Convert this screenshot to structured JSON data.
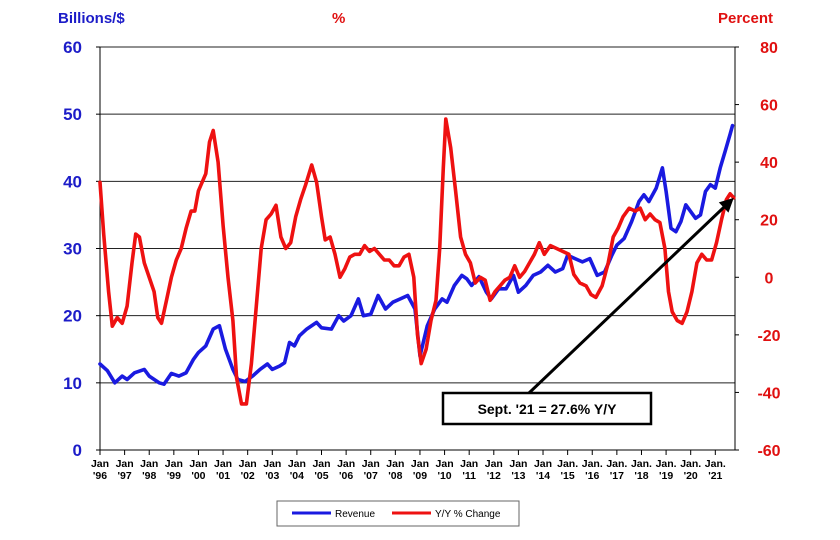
{
  "titles": {
    "left_axis": "Billions/$",
    "middle": "%",
    "right_axis": "Percent"
  },
  "colors": {
    "revenue": "#1a1ae0",
    "yoy": "#ee1111",
    "left_axis_text": "#1c1cc8",
    "right_axis_text": "#e01010"
  },
  "chart_data": {
    "type": "line",
    "left_axis": {
      "ylim": [
        0,
        60
      ],
      "ticks": [
        0,
        10,
        20,
        30,
        40,
        50,
        60
      ]
    },
    "right_axis": {
      "ylim": [
        -60,
        80
      ],
      "ticks": [
        -60,
        -40,
        -20,
        0,
        20,
        40,
        60,
        80
      ]
    },
    "x_range": [
      1996,
      2021.8
    ],
    "x_ticks": [
      {
        "x": 1996,
        "line1": "Jan",
        "line2": "'96"
      },
      {
        "x": 1997,
        "line1": "Jan",
        "line2": "'97"
      },
      {
        "x": 1998,
        "line1": "Jan",
        "line2": "'98"
      },
      {
        "x": 1999,
        "line1": "Jan",
        "line2": "'99"
      },
      {
        "x": 2000,
        "line1": "Jan",
        "line2": "'00"
      },
      {
        "x": 2001,
        "line1": "Jan",
        "line2": "'01"
      },
      {
        "x": 2002,
        "line1": "Jan",
        "line2": "'02"
      },
      {
        "x": 2003,
        "line1": "Jan",
        "line2": "'03"
      },
      {
        "x": 2004,
        "line1": "Jan",
        "line2": "'04"
      },
      {
        "x": 2005,
        "line1": "Jan",
        "line2": "'05"
      },
      {
        "x": 2006,
        "line1": "Jan",
        "line2": "'06"
      },
      {
        "x": 2007,
        "line1": "Jan",
        "line2": "'07"
      },
      {
        "x": 2008,
        "line1": "Jan",
        "line2": "'08"
      },
      {
        "x": 2009,
        "line1": "Jan",
        "line2": "'09"
      },
      {
        "x": 2010,
        "line1": "Jan",
        "line2": "'10"
      },
      {
        "x": 2011,
        "line1": "Jan",
        "line2": "'11"
      },
      {
        "x": 2012,
        "line1": "Jan",
        "line2": "'12"
      },
      {
        "x": 2013,
        "line1": "Jan",
        "line2": "'13"
      },
      {
        "x": 2014,
        "line1": "Jan",
        "line2": "'14"
      },
      {
        "x": 2015,
        "line1": "Jan.",
        "line2": "'15"
      },
      {
        "x": 2016,
        "line1": "Jan.",
        "line2": "'16"
      },
      {
        "x": 2017,
        "line1": "Jan.",
        "line2": "'17"
      },
      {
        "x": 2018,
        "line1": "Jan.",
        "line2": "'18"
      },
      {
        "x": 2019,
        "line1": "Jan.",
        "line2": "'19"
      },
      {
        "x": 2020,
        "line1": "Jan.",
        "line2": "'20"
      },
      {
        "x": 2021,
        "line1": "Jan.",
        "line2": "'21"
      }
    ],
    "grid": "horizontal",
    "series": [
      {
        "name": "Revenue",
        "axis": "left",
        "points": [
          [
            1996.0,
            12.8
          ],
          [
            1996.3,
            11.8
          ],
          [
            1996.6,
            10.0
          ],
          [
            1996.9,
            11.0
          ],
          [
            1997.1,
            10.5
          ],
          [
            1997.4,
            11.5
          ],
          [
            1997.8,
            12.0
          ],
          [
            1998.0,
            11.0
          ],
          [
            1998.4,
            10.0
          ],
          [
            1998.6,
            9.8
          ],
          [
            1998.9,
            11.4
          ],
          [
            1999.2,
            11.0
          ],
          [
            1999.5,
            11.5
          ],
          [
            1999.8,
            13.5
          ],
          [
            2000.0,
            14.5
          ],
          [
            2000.3,
            15.5
          ],
          [
            2000.6,
            18.0
          ],
          [
            2000.85,
            18.5
          ],
          [
            2001.1,
            15.0
          ],
          [
            2001.4,
            12.0
          ],
          [
            2001.6,
            10.5
          ],
          [
            2001.9,
            10.2
          ],
          [
            2002.2,
            11.0
          ],
          [
            2002.5,
            12.0
          ],
          [
            2002.8,
            12.8
          ],
          [
            2003.0,
            12.0
          ],
          [
            2003.3,
            12.5
          ],
          [
            2003.5,
            13.0
          ],
          [
            2003.7,
            16.0
          ],
          [
            2003.9,
            15.5
          ],
          [
            2004.1,
            17.0
          ],
          [
            2004.4,
            18.0
          ],
          [
            2004.8,
            19.0
          ],
          [
            2005.0,
            18.2
          ],
          [
            2005.4,
            18.0
          ],
          [
            2005.7,
            20.0
          ],
          [
            2005.9,
            19.2
          ],
          [
            2006.2,
            20.0
          ],
          [
            2006.5,
            22.5
          ],
          [
            2006.7,
            20.0
          ],
          [
            2007.0,
            20.2
          ],
          [
            2007.3,
            23.0
          ],
          [
            2007.6,
            21.0
          ],
          [
            2007.9,
            22.0
          ],
          [
            2008.2,
            22.5
          ],
          [
            2008.5,
            23.0
          ],
          [
            2008.8,
            21.0
          ],
          [
            2009.0,
            14.0
          ],
          [
            2009.3,
            18.5
          ],
          [
            2009.6,
            21.0
          ],
          [
            2009.9,
            22.5
          ],
          [
            2010.1,
            22.0
          ],
          [
            2010.4,
            24.5
          ],
          [
            2010.7,
            26.0
          ],
          [
            2010.9,
            25.5
          ],
          [
            2011.1,
            24.5
          ],
          [
            2011.4,
            25.8
          ],
          [
            2011.7,
            23.5
          ],
          [
            2011.9,
            22.5
          ],
          [
            2012.2,
            24.0
          ],
          [
            2012.5,
            24.0
          ],
          [
            2012.8,
            26.0
          ],
          [
            2013.0,
            23.5
          ],
          [
            2013.3,
            24.5
          ],
          [
            2013.6,
            26.0
          ],
          [
            2013.9,
            26.5
          ],
          [
            2014.2,
            27.5
          ],
          [
            2014.5,
            26.5
          ],
          [
            2014.8,
            27.0
          ],
          [
            2015.0,
            29.0
          ],
          [
            2015.3,
            28.5
          ],
          [
            2015.6,
            28.0
          ],
          [
            2015.9,
            28.5
          ],
          [
            2016.2,
            26.0
          ],
          [
            2016.5,
            26.5
          ],
          [
            2016.8,
            29.0
          ],
          [
            2017.0,
            30.5
          ],
          [
            2017.3,
            31.5
          ],
          [
            2017.6,
            34.0
          ],
          [
            2017.9,
            37.0
          ],
          [
            2018.1,
            38.0
          ],
          [
            2018.3,
            37.0
          ],
          [
            2018.6,
            39.0
          ],
          [
            2018.85,
            42.0
          ],
          [
            2019.0,
            38.5
          ],
          [
            2019.2,
            33.0
          ],
          [
            2019.4,
            32.5
          ],
          [
            2019.6,
            34.0
          ],
          [
            2019.8,
            36.5
          ],
          [
            2020.0,
            35.5
          ],
          [
            2020.2,
            34.5
          ],
          [
            2020.4,
            35.0
          ],
          [
            2020.6,
            38.5
          ],
          [
            2020.8,
            39.5
          ],
          [
            2021.0,
            39.0
          ],
          [
            2021.2,
            42.0
          ],
          [
            2021.4,
            44.5
          ],
          [
            2021.6,
            47.0
          ],
          [
            2021.7,
            48.3
          ]
        ]
      },
      {
        "name": "Y/Y % Change",
        "axis": "right",
        "points": [
          [
            1996.0,
            33
          ],
          [
            1996.15,
            15
          ],
          [
            1996.35,
            -5
          ],
          [
            1996.5,
            -17
          ],
          [
            1996.7,
            -14
          ],
          [
            1996.9,
            -16
          ],
          [
            1997.1,
            -10
          ],
          [
            1997.3,
            5
          ],
          [
            1997.45,
            15
          ],
          [
            1997.6,
            14
          ],
          [
            1997.8,
            5
          ],
          [
            1998.0,
            0
          ],
          [
            1998.2,
            -5
          ],
          [
            1998.35,
            -14
          ],
          [
            1998.5,
            -16
          ],
          [
            1998.7,
            -8
          ],
          [
            1998.9,
            0
          ],
          [
            1999.1,
            6
          ],
          [
            1999.3,
            10
          ],
          [
            1999.5,
            17
          ],
          [
            1999.7,
            23
          ],
          [
            1999.85,
            23
          ],
          [
            2000.0,
            30
          ],
          [
            2000.15,
            33
          ],
          [
            2000.3,
            36
          ],
          [
            2000.45,
            47
          ],
          [
            2000.6,
            51
          ],
          [
            2000.8,
            40
          ],
          [
            2001.0,
            18
          ],
          [
            2001.2,
            0
          ],
          [
            2001.4,
            -15
          ],
          [
            2001.55,
            -35
          ],
          [
            2001.75,
            -44
          ],
          [
            2001.95,
            -44
          ],
          [
            2002.15,
            -30
          ],
          [
            2002.35,
            -10
          ],
          [
            2002.55,
            10
          ],
          [
            2002.75,
            20
          ],
          [
            2002.95,
            22
          ],
          [
            2003.15,
            25
          ],
          [
            2003.35,
            14
          ],
          [
            2003.55,
            10
          ],
          [
            2003.75,
            12
          ],
          [
            2003.95,
            21
          ],
          [
            2004.15,
            27
          ],
          [
            2004.35,
            32
          ],
          [
            2004.6,
            39
          ],
          [
            2004.8,
            33
          ],
          [
            2005.0,
            21
          ],
          [
            2005.15,
            13
          ],
          [
            2005.35,
            14
          ],
          [
            2005.55,
            8
          ],
          [
            2005.75,
            0
          ],
          [
            2005.95,
            3
          ],
          [
            2006.15,
            7
          ],
          [
            2006.35,
            8
          ],
          [
            2006.55,
            8
          ],
          [
            2006.75,
            11
          ],
          [
            2006.95,
            9
          ],
          [
            2007.15,
            10
          ],
          [
            2007.35,
            8
          ],
          [
            2007.55,
            6
          ],
          [
            2007.75,
            6
          ],
          [
            2007.95,
            4
          ],
          [
            2008.15,
            4
          ],
          [
            2008.35,
            7
          ],
          [
            2008.55,
            8
          ],
          [
            2008.75,
            0
          ],
          [
            2008.9,
            -20
          ],
          [
            2009.05,
            -30
          ],
          [
            2009.25,
            -25
          ],
          [
            2009.45,
            -15
          ],
          [
            2009.65,
            -8
          ],
          [
            2009.8,
            10
          ],
          [
            2009.95,
            38
          ],
          [
            2010.05,
            55
          ],
          [
            2010.25,
            45
          ],
          [
            2010.45,
            30
          ],
          [
            2010.65,
            14
          ],
          [
            2010.85,
            8
          ],
          [
            2011.05,
            5
          ],
          [
            2011.25,
            -2
          ],
          [
            2011.45,
            0
          ],
          [
            2011.65,
            -1
          ],
          [
            2011.85,
            -8
          ],
          [
            2012.05,
            -5
          ],
          [
            2012.25,
            -3
          ],
          [
            2012.45,
            -1
          ],
          [
            2012.65,
            0
          ],
          [
            2012.85,
            4
          ],
          [
            2013.05,
            0
          ],
          [
            2013.25,
            2
          ],
          [
            2013.45,
            5
          ],
          [
            2013.65,
            8
          ],
          [
            2013.85,
            12
          ],
          [
            2014.05,
            8
          ],
          [
            2014.3,
            11
          ],
          [
            2014.55,
            10
          ],
          [
            2014.8,
            9
          ],
          [
            2015.05,
            8
          ],
          [
            2015.25,
            1
          ],
          [
            2015.5,
            -2
          ],
          [
            2015.75,
            -3
          ],
          [
            2015.95,
            -6
          ],
          [
            2016.15,
            -7
          ],
          [
            2016.4,
            -3
          ],
          [
            2016.65,
            5
          ],
          [
            2016.85,
            14
          ],
          [
            2017.05,
            17
          ],
          [
            2017.25,
            21
          ],
          [
            2017.5,
            24
          ],
          [
            2017.75,
            23
          ],
          [
            2017.95,
            24
          ],
          [
            2018.15,
            20
          ],
          [
            2018.35,
            22
          ],
          [
            2018.55,
            20
          ],
          [
            2018.75,
            19
          ],
          [
            2018.95,
            10
          ],
          [
            2019.1,
            -5
          ],
          [
            2019.25,
            -12
          ],
          [
            2019.45,
            -15
          ],
          [
            2019.65,
            -16
          ],
          [
            2019.85,
            -12
          ],
          [
            2020.05,
            -5
          ],
          [
            2020.25,
            5
          ],
          [
            2020.45,
            8
          ],
          [
            2020.65,
            6
          ],
          [
            2020.85,
            6
          ],
          [
            2021.05,
            12
          ],
          [
            2021.25,
            20
          ],
          [
            2021.45,
            27
          ],
          [
            2021.6,
            29
          ],
          [
            2021.75,
            27.6
          ]
        ]
      }
    ],
    "legend": {
      "placement": "bottom-center",
      "entries": [
        "Revenue",
        "Y/Y % Change"
      ]
    },
    "annotation": {
      "text": "Sept. '21 = 27.6% Y/Y",
      "target_x": 2021.75,
      "target_y_right": 27.6
    }
  }
}
